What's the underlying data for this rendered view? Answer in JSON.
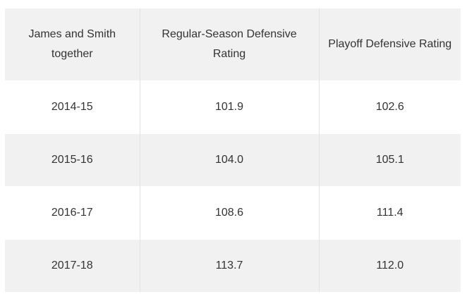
{
  "table": {
    "headers": [
      "James and Smith together",
      "Regular-Season Defensive Rating",
      "Playoff Defensive Rating"
    ],
    "rows": [
      [
        "2014-15",
        "101.9",
        "102.6"
      ],
      [
        "2015-16",
        "104.0",
        "105.1"
      ],
      [
        "2016-17",
        "108.6",
        "111.4"
      ],
      [
        "2017-18",
        "113.7",
        "112.0"
      ]
    ]
  }
}
